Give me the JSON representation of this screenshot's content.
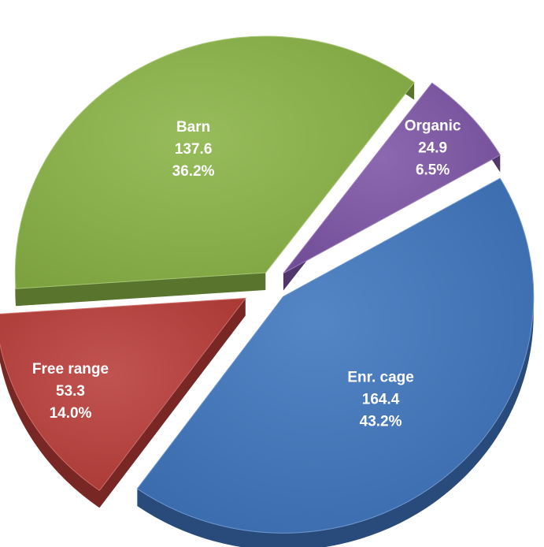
{
  "chart_data": {
    "type": "pie",
    "style": "3d-exploded",
    "title": "",
    "slices": [
      {
        "label": "Enr. cage",
        "value": 164.4,
        "value_text": "164.4",
        "percent_text": "43.2%",
        "color": "#3d74bd"
      },
      {
        "label": "Free range",
        "value": 53.3,
        "value_text": "53.3",
        "percent_text": "14.0%",
        "color": "#b93c38"
      },
      {
        "label": "Barn",
        "value": 137.6,
        "value_text": "137.6",
        "percent_text": "36.2%",
        "color": "#89b345"
      },
      {
        "label": "Organic",
        "value": 24.9,
        "value_text": "24.9",
        "percent_text": "6.5%",
        "color": "#7c53a5"
      }
    ]
  }
}
